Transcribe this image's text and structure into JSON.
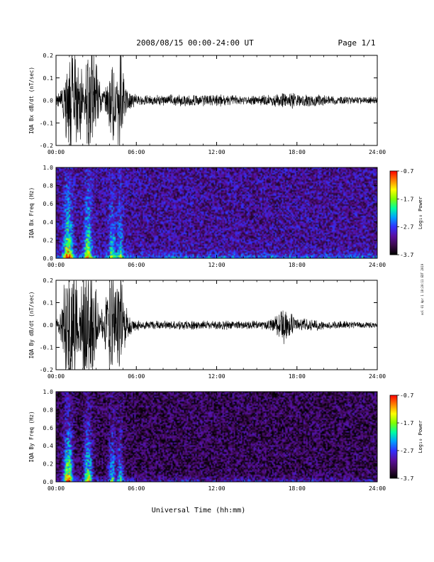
{
  "header": {
    "title": "2008/08/15  00:00-24:00 UT",
    "page": "Page 1/1"
  },
  "x_axis": {
    "label": "Universal Time (hh:mm)",
    "range_hours": [
      0,
      24
    ],
    "ticks": [
      {
        "h": 0,
        "label": "00:00"
      },
      {
        "h": 6,
        "label": "06:00"
      },
      {
        "h": 12,
        "label": "12:00"
      },
      {
        "h": 18,
        "label": "18:00"
      },
      {
        "h": 24,
        "label": "24:00"
      }
    ]
  },
  "side_note": "ool 01 Apr 1 18:20:11 EDT 2019",
  "colors": {
    "trace": "#000000",
    "background": "#ffffff",
    "colormap": [
      "#000000",
      "#3a0a4a",
      "#5a0fa0",
      "#3030ff",
      "#00a0ff",
      "#00ffa0",
      "#80ff00",
      "#ffff00",
      "#ff8000",
      "#ff0000"
    ]
  },
  "chart_data": [
    {
      "type": "line",
      "ylabel": "IQA Bx dB/dt (nT/sec)",
      "ylim": [
        -0.2,
        0.2
      ],
      "yticks": [
        {
          "v": -0.2,
          "label": "-0.2"
        },
        {
          "v": -0.1,
          "label": "-0.1"
        },
        {
          "v": 0.0,
          "label": "0.0"
        },
        {
          "v": 0.1,
          "label": "0.1"
        },
        {
          "v": 0.2,
          "label": "0.2"
        }
      ],
      "envelope": {
        "x": [
          0,
          0.3,
          0.6,
          0.9,
          1.2,
          1.5,
          1.8,
          2.1,
          2.4,
          2.7,
          3.0,
          3.3,
          3.6,
          3.9,
          4.2,
          4.5,
          4.8,
          5.1,
          5.4,
          5.7,
          6,
          7,
          8,
          9,
          10,
          11,
          12,
          13,
          14,
          15,
          16,
          17,
          17.5,
          18,
          19,
          20,
          21,
          22,
          23,
          24
        ],
        "amp": [
          0.03,
          0.04,
          0.12,
          0.3,
          0.3,
          0.22,
          0.2,
          0.08,
          0.3,
          0.3,
          0.2,
          0.08,
          0.05,
          0.1,
          0.22,
          0.12,
          0.3,
          0.09,
          0.05,
          0.04,
          0.03,
          0.025,
          0.025,
          0.028,
          0.03,
          0.028,
          0.03,
          0.025,
          0.022,
          0.025,
          0.028,
          0.04,
          0.045,
          0.035,
          0.03,
          0.025,
          0.022,
          0.02,
          0.018,
          0.018
        ]
      },
      "baseline": 0.0
    },
    {
      "type": "heatmap",
      "ylabel": "IQA Bx Freq (Hz)",
      "ylim": [
        0,
        1.0
      ],
      "yticks": [
        {
          "v": 0.0,
          "label": "0.0"
        },
        {
          "v": 0.2,
          "label": "0.2"
        },
        {
          "v": 0.4,
          "label": "0.4"
        },
        {
          "v": 0.6,
          "label": "0.6"
        },
        {
          "v": 0.8,
          "label": "0.8"
        },
        {
          "v": 1.0,
          "label": "1.0"
        }
      ],
      "colorbar": {
        "label": "Log₁₀ Power",
        "range": [
          -3.7,
          -0.7
        ],
        "ticks": [
          {
            "v": -0.7,
            "label": "-0.7"
          },
          {
            "v": -1.7,
            "label": "-1.7"
          },
          {
            "v": -2.7,
            "label": "-2.7"
          },
          {
            "v": -3.7,
            "label": "-3.7"
          }
        ]
      },
      "noise_floor": -3.1,
      "bursts": [
        {
          "x": 0.9,
          "amp": 2.2,
          "width": 0.35
        },
        {
          "x": 2.4,
          "amp": 1.9,
          "width": 0.3
        },
        {
          "x": 4.2,
          "amp": 1.3,
          "width": 0.25
        },
        {
          "x": 4.8,
          "amp": 1.2,
          "width": 0.2
        }
      ],
      "lowfreq_band": {
        "level": 0.9,
        "decay": 0.04
      }
    },
    {
      "type": "line",
      "ylabel": "IQA By dB/dt (nT/sec)",
      "ylim": [
        -0.2,
        0.2
      ],
      "yticks": [
        {
          "v": -0.2,
          "label": "-0.2"
        },
        {
          "v": -0.1,
          "label": "-0.1"
        },
        {
          "v": 0.0,
          "label": "0.0"
        },
        {
          "v": 0.1,
          "label": "0.1"
        },
        {
          "v": 0.2,
          "label": "0.2"
        }
      ],
      "envelope": {
        "x": [
          0,
          0.3,
          0.6,
          0.9,
          1.2,
          1.5,
          1.8,
          2.1,
          2.4,
          2.7,
          3.0,
          3.3,
          3.6,
          3.9,
          4.2,
          4.5,
          4.8,
          5.1,
          5.4,
          5.7,
          6,
          7,
          8,
          9,
          10,
          11,
          12,
          13,
          14,
          15,
          16,
          16.5,
          17,
          17.3,
          18,
          19,
          20,
          21,
          22,
          23,
          24
        ],
        "amp": [
          0.03,
          0.05,
          0.2,
          0.3,
          0.3,
          0.3,
          0.15,
          0.3,
          0.3,
          0.3,
          0.18,
          0.06,
          0.12,
          0.2,
          0.3,
          0.18,
          0.3,
          0.15,
          0.05,
          0.04,
          0.03,
          0.02,
          0.02,
          0.022,
          0.025,
          0.022,
          0.025,
          0.022,
          0.02,
          0.022,
          0.025,
          0.06,
          0.09,
          0.07,
          0.035,
          0.03,
          0.025,
          0.02,
          0.018,
          0.015,
          0.015
        ]
      },
      "baseline": 0.0
    },
    {
      "type": "heatmap",
      "ylabel": "IQA By Freq (Hz)",
      "ylim": [
        0,
        1.0
      ],
      "yticks": [
        {
          "v": 0.0,
          "label": "0.0"
        },
        {
          "v": 0.2,
          "label": "0.2"
        },
        {
          "v": 0.4,
          "label": "0.4"
        },
        {
          "v": 0.6,
          "label": "0.6"
        },
        {
          "v": 0.8,
          "label": "0.8"
        },
        {
          "v": 1.0,
          "label": "1.0"
        }
      ],
      "colorbar": {
        "label": "Log₁₀ Power",
        "range": [
          -3.7,
          -0.7
        ],
        "ticks": [
          {
            "v": -0.7,
            "label": "-0.7"
          },
          {
            "v": -1.7,
            "label": "-1.7"
          },
          {
            "v": -2.7,
            "label": "-2.7"
          },
          {
            "v": -3.7,
            "label": "-3.7"
          }
        ]
      },
      "noise_floor": -3.35,
      "bursts": [
        {
          "x": 0.9,
          "amp": 2.4,
          "width": 0.35
        },
        {
          "x": 2.4,
          "amp": 2.1,
          "width": 0.3
        },
        {
          "x": 4.2,
          "amp": 1.4,
          "width": 0.25
        },
        {
          "x": 4.8,
          "amp": 1.3,
          "width": 0.2
        }
      ],
      "lowfreq_band": {
        "level": 0.75,
        "decay": 0.03
      }
    }
  ]
}
